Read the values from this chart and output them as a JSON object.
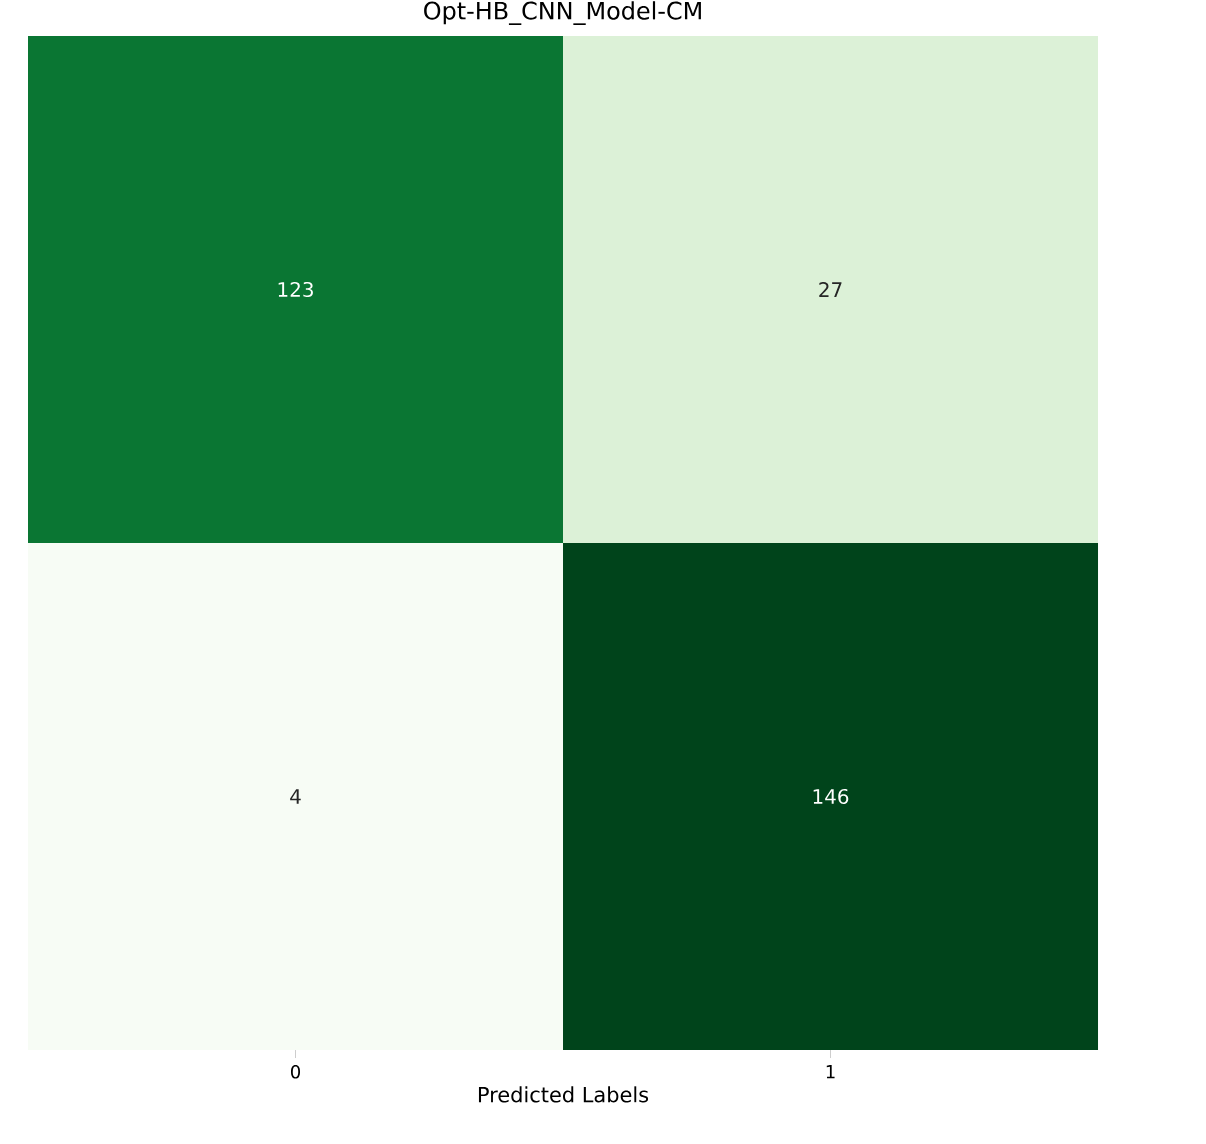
{
  "chart_data": {
    "type": "heatmap",
    "title": "Opt-HB_CNN_Model-CM",
    "xlabel": "Predicted Labels",
    "categories": [
      "0",
      "1"
    ],
    "y_categories": [
      null,
      null
    ],
    "cells": [
      [
        123,
        27
      ],
      [
        4,
        146
      ]
    ],
    "data_labels": true
  }
}
